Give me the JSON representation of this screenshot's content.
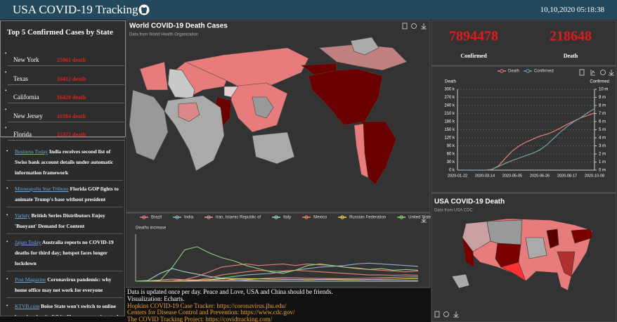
{
  "header": {
    "title": "USA COVID-19 Tracking",
    "timestamp": "10,10,2020 05:18:38"
  },
  "top5": {
    "title": "Top 5 Confirmed Cases by State",
    "rows": [
      {
        "state": "New York",
        "deaths": "25961 death"
      },
      {
        "state": "Texas",
        "deaths": "16412 death"
      },
      {
        "state": "California",
        "deaths": "16428 death"
      },
      {
        "state": "New Jersey",
        "deaths": "16184 death"
      },
      {
        "state": "Florida",
        "deaths": "15372 death"
      }
    ]
  },
  "news": {
    "items": [
      {
        "source": "Business Today",
        "headline": "India receives second list of Swiss bank account details under automatic information framework"
      },
      {
        "source": "Minneapolis Star Tribune",
        "headline": "Florida GOP fights to animate Trump's base without president"
      },
      {
        "source": "Variety",
        "headline": "British Series Distributors Enjoy 'Buoyant' Demand for Content"
      },
      {
        "source": "Japan Today",
        "headline": "Australia reports no COVID-19 deaths for third day; hotspot faces longer lockdown"
      },
      {
        "source": "Post Magazine",
        "headline": "Coronavirus pandemic: why home office may not work for everyone"
      },
      {
        "source": "KTVB.com",
        "headline": "Boise State won't switch to online learning despite White House coronavirus task force recommendation"
      }
    ]
  },
  "kpi": {
    "confirmed": {
      "value": 7894478,
      "label": "Confirmed"
    },
    "death": {
      "value": 218648,
      "label": "Death"
    }
  },
  "footer": {
    "lines": [
      "Data is updated once per day. Peace and Love, USA and China should be friends.",
      "Visualization: Echarts.",
      "Hopkins COVID-19 Case Tracker: https://coronavirus.jhu.edu/",
      "Centers for Disease Control and Prevention: https://www.cdc.gov/",
      "The COVID Tracking Project: https://covidtracking.com/"
    ]
  },
  "chart_data": [
    {
      "type": "map",
      "title": "World COVID-19 Death Cases",
      "subtitle": "Data from World Health Organization"
    },
    {
      "type": "line",
      "y_label": "Deaths increase",
      "ylim": [
        0,
        3000
      ],
      "series": [
        {
          "name": "Brazil",
          "color": "#e87c7c",
          "values": [
            0,
            0,
            0,
            20,
            100,
            300,
            600,
            900,
            1000,
            1100,
            1000,
            1050,
            1100,
            1000,
            1100,
            1050,
            1000,
            900,
            850,
            750,
            700,
            650,
            600,
            650
          ]
        },
        {
          "name": "India",
          "color": "#8cb4c8",
          "values": [
            0,
            0,
            0,
            0,
            10,
            50,
            100,
            200,
            300,
            400,
            450,
            500,
            600,
            700,
            800,
            900,
            950,
            1000,
            1100,
            1150,
            1100,
            1050,
            1000,
            950
          ]
        },
        {
          "name": "Iran, Islamic Republic of",
          "color": "#d99a9a",
          "values": [
            0,
            20,
            80,
            130,
            100,
            80,
            60,
            60,
            70,
            100,
            150,
            200,
            220,
            210,
            190,
            180,
            170,
            160,
            180,
            200,
            220,
            250,
            270,
            280
          ]
        },
        {
          "name": "Italy",
          "color": "#9fd0c6",
          "values": [
            0,
            50,
            500,
            800,
            600,
            450,
            300,
            200,
            100,
            50,
            30,
            20,
            15,
            10,
            10,
            10,
            10,
            10,
            10,
            15,
            20,
            20,
            25,
            30
          ]
        },
        {
          "name": "Mexico",
          "color": "#e8866c",
          "values": [
            0,
            0,
            0,
            0,
            20,
            80,
            200,
            400,
            500,
            600,
            700,
            650,
            650,
            700,
            650,
            600,
            550,
            500,
            450,
            400,
            400,
            380,
            400,
            380
          ]
        },
        {
          "name": "Russian Federation",
          "color": "#f0d060",
          "values": [
            0,
            0,
            0,
            0,
            10,
            50,
            100,
            150,
            170,
            160,
            150,
            130,
            120,
            110,
            100,
            110,
            120,
            100,
            100,
            110,
            120,
            130,
            150,
            170
          ]
        },
        {
          "name": "United States of America",
          "color": "#8fcf7f",
          "values": [
            0,
            0,
            50,
            900,
            2000,
            2200,
            1800,
            1500,
            1300,
            1000,
            800,
            600,
            500,
            700,
            1000,
            1100,
            1000,
            900,
            800,
            750,
            800,
            700,
            750,
            700
          ]
        }
      ]
    },
    {
      "type": "line",
      "y_label": "Death",
      "y2_label": "Confirmed",
      "categories": [
        "2020-01-22",
        null,
        null,
        null,
        "2020-03-14",
        null,
        null,
        null,
        "2020-05-05",
        null,
        null,
        null,
        "2020-06-26",
        null,
        null,
        null,
        "2020-08-17",
        null,
        null,
        null,
        "2020-10-08"
      ],
      "ylim": [
        0,
        300000
      ],
      "yticks": [
        {
          "value": 0,
          "label": "0 k"
        },
        {
          "value": 30000,
          "label": "30 k"
        },
        {
          "value": 60000,
          "label": "60 k"
        },
        {
          "value": 90000,
          "label": "90 k"
        },
        {
          "value": 120000,
          "label": "120 k"
        },
        {
          "value": 150000,
          "label": "150 k"
        },
        {
          "value": 180000,
          "label": "180 k"
        },
        {
          "value": 210000,
          "label": "210 k"
        },
        {
          "value": 240000,
          "label": "240 k"
        },
        {
          "value": 270000,
          "label": "270 k"
        },
        {
          "value": 300000,
          "label": "300 k"
        }
      ],
      "y2lim": [
        0,
        10000000
      ],
      "y2ticks": [
        {
          "value": 0,
          "label": "0 m"
        },
        {
          "value": 1000000,
          "label": "1 m"
        },
        {
          "value": 2000000,
          "label": "2 m"
        },
        {
          "value": 3000000,
          "label": "3 m"
        },
        {
          "value": 4000000,
          "label": "4 m"
        },
        {
          "value": 5000000,
          "label": "5 m"
        },
        {
          "value": 6000000,
          "label": "6 m"
        },
        {
          "value": 7000000,
          "label": "7 m"
        },
        {
          "value": 8000000,
          "label": "8 m"
        },
        {
          "value": 9000000,
          "label": "9 m"
        },
        {
          "value": 10000000,
          "label": "10 m"
        }
      ],
      "grid": true,
      "series": [
        {
          "name": "Death",
          "color": "#e87c7c",
          "values": [
            0,
            0,
            0,
            0,
            50,
            1700,
            16000,
            45000,
            71000,
            90000,
            104000,
            115000,
            126000,
            133000,
            143000,
            156000,
            170000,
            182000,
            194000,
            203000,
            212000
          ]
        },
        {
          "name": "Confirmed",
          "color": "#7a9fa8",
          "axis": "y2",
          "values": [
            0,
            0,
            0,
            0,
            2700,
            100000,
            460000,
            840000,
            1200000,
            1500000,
            1800000,
            2100000,
            2500000,
            3100000,
            3900000,
            4700000,
            5400000,
            6000000,
            6500000,
            7100000,
            7600000
          ]
        }
      ]
    },
    {
      "type": "map",
      "title": "USA COVID-19 Death",
      "subtitle": "Data from USA CDC"
    }
  ]
}
